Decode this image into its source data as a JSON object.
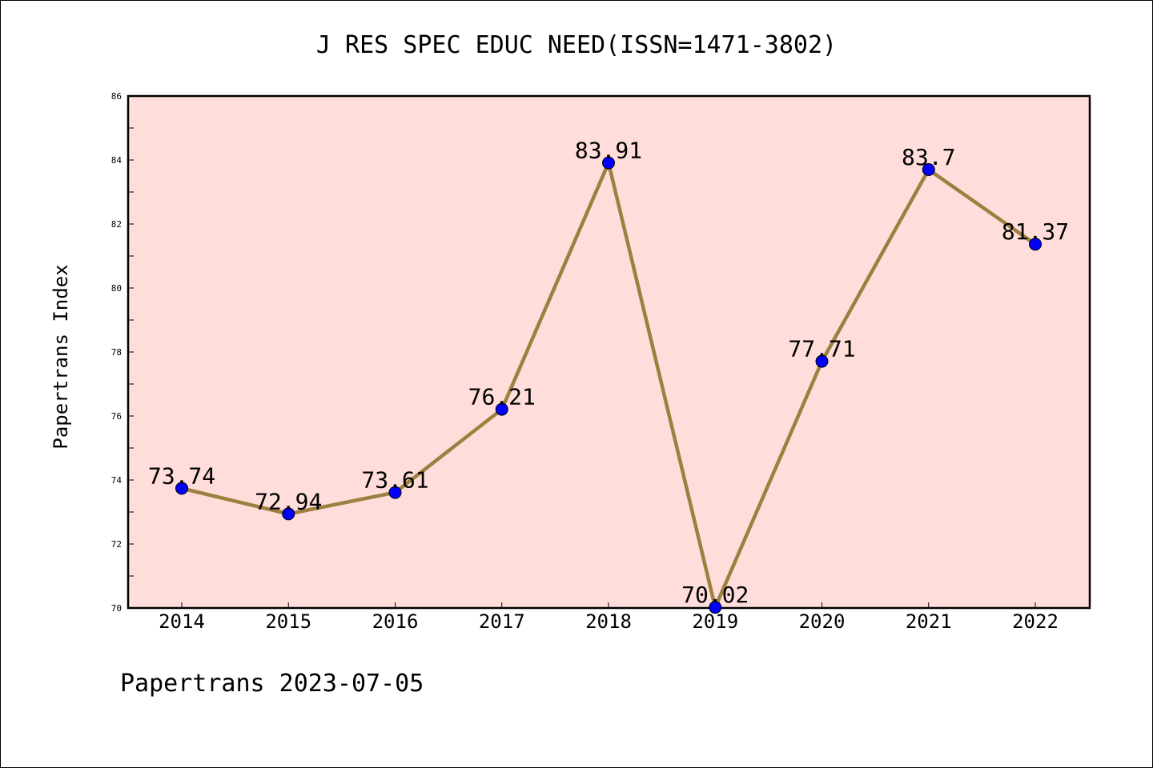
{
  "chart_data": {
    "type": "line",
    "title": "J RES SPEC EDUC NEED(ISSN=1471-3802)",
    "ylabel": "Papertrans Index",
    "xlabel": "",
    "footer": "Papertrans 2023-07-05",
    "categories": [
      "2014",
      "2015",
      "2016",
      "2017",
      "2018",
      "2019",
      "2020",
      "2021",
      "2022"
    ],
    "values": [
      73.74,
      72.94,
      73.61,
      76.21,
      83.91,
      70.02,
      77.71,
      83.7,
      81.37
    ],
    "value_labels": [
      "73.74",
      "72.94",
      "73.61",
      "76.21",
      "83.91",
      "70.02",
      "77.71",
      "83.7",
      "81.37"
    ],
    "ylim": [
      70,
      86
    ],
    "yticks": [
      "70",
      "72",
      "74",
      "76",
      "78",
      "80",
      "82",
      "84",
      "86"
    ],
    "grid": false,
    "colors": {
      "plot_background": "#FFDDDB",
      "line": "#9C803F",
      "marker": "#0000FF"
    }
  }
}
